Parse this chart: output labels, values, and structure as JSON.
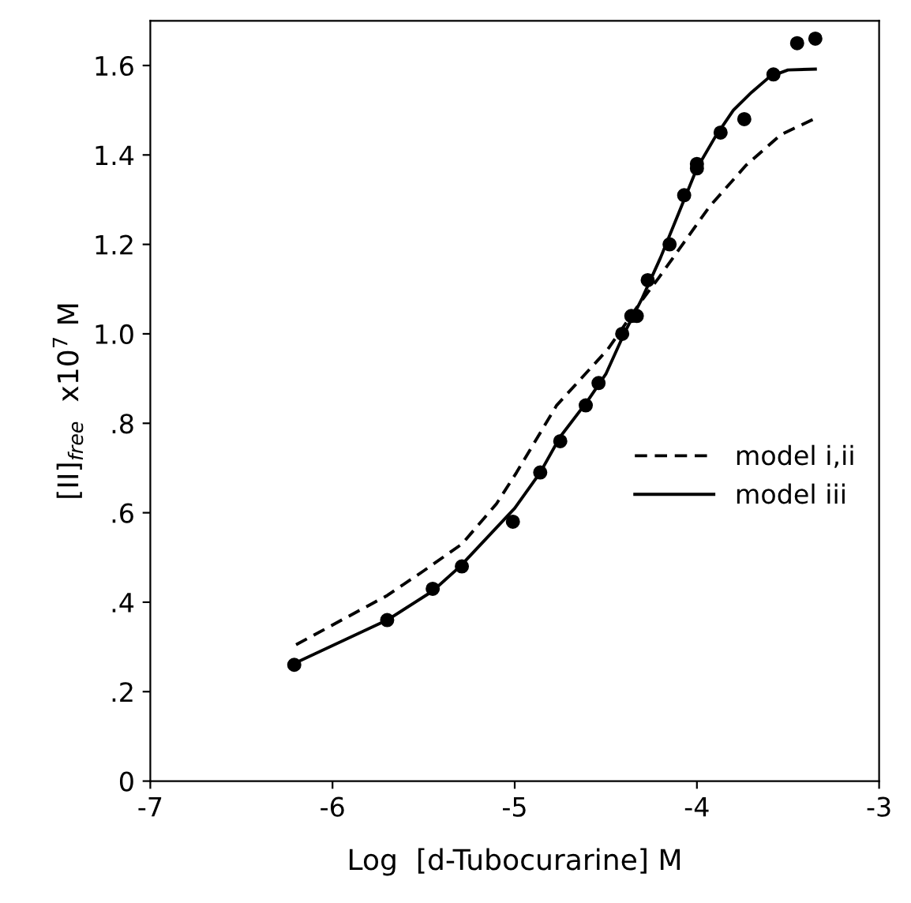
{
  "chart_data": {
    "type": "line",
    "xlabel": "Log  [d-Tubocurarine] M",
    "ylabel": "[II]$_{free}$  x10$^{7}$ M",
    "xlim": [
      -7,
      -3
    ],
    "xticks": [
      -7,
      -6,
      -5,
      -4,
      -3
    ],
    "ylim": [
      0,
      1.7
    ],
    "yticks": [
      {
        "value": 0,
        "label": "0"
      },
      {
        "value": 0.2,
        "label": ".2"
      },
      {
        "value": 0.4,
        "label": ".4"
      },
      {
        "value": 0.6,
        "label": ".6"
      },
      {
        "value": 0.8,
        "label": ".8"
      },
      {
        "value": 1.0,
        "label": "1.0"
      },
      {
        "value": 1.2,
        "label": "1.2"
      },
      {
        "value": 1.4,
        "label": "1.4"
      },
      {
        "value": 1.6,
        "label": "1.6"
      }
    ],
    "grid": false,
    "legend": "right",
    "series": [
      {
        "type": "scatter",
        "color": "#000000",
        "marker": "circle",
        "x": [
          -6.21,
          -5.7,
          -5.45,
          -5.29,
          -5.01,
          -4.86,
          -4.75,
          -4.61,
          -4.54,
          -4.41,
          -4.36,
          -4.33,
          -4.27,
          -4.15,
          -4.07,
          -4.0,
          -4.0,
          -3.87,
          -3.74,
          -3.58,
          -3.45,
          -3.35
        ],
        "values": [
          0.26,
          0.36,
          0.43,
          0.48,
          0.58,
          0.69,
          0.76,
          0.84,
          0.89,
          1.0,
          1.04,
          1.04,
          1.12,
          1.2,
          1.31,
          1.38,
          1.37,
          1.45,
          1.48,
          1.58,
          1.65,
          1.66
        ]
      },
      {
        "name": "model i,ii",
        "color": "#000000",
        "line_style": "dashed",
        "x": [
          -6.2,
          -5.95,
          -5.7,
          -5.5,
          -5.29,
          -5.1,
          -4.99,
          -4.77,
          -4.49,
          -4.32,
          -4.21,
          -4.07,
          -3.93,
          -3.73,
          -3.54,
          -3.35
        ],
        "values": [
          0.305,
          0.36,
          0.415,
          0.47,
          0.53,
          0.62,
          0.69,
          0.84,
          0.965,
          1.065,
          1.125,
          1.205,
          1.285,
          1.377,
          1.445,
          1.482
        ]
      },
      {
        "name": "model iii",
        "color": "#000000",
        "line_style": "solid",
        "x": [
          -6.2,
          -5.7,
          -5.45,
          -5.3,
          -5.0,
          -4.86,
          -4.75,
          -4.6,
          -4.5,
          -4.4,
          -4.3,
          -4.2,
          -4.1,
          -4.0,
          -3.9,
          -3.8,
          -3.7,
          -3.6,
          -3.5,
          -3.35
        ],
        "values": [
          0.265,
          0.36,
          0.425,
          0.48,
          0.61,
          0.69,
          0.77,
          0.85,
          0.91,
          1.0,
          1.08,
          1.17,
          1.27,
          1.37,
          1.44,
          1.5,
          1.54,
          1.575,
          1.59,
          1.592
        ]
      }
    ]
  }
}
